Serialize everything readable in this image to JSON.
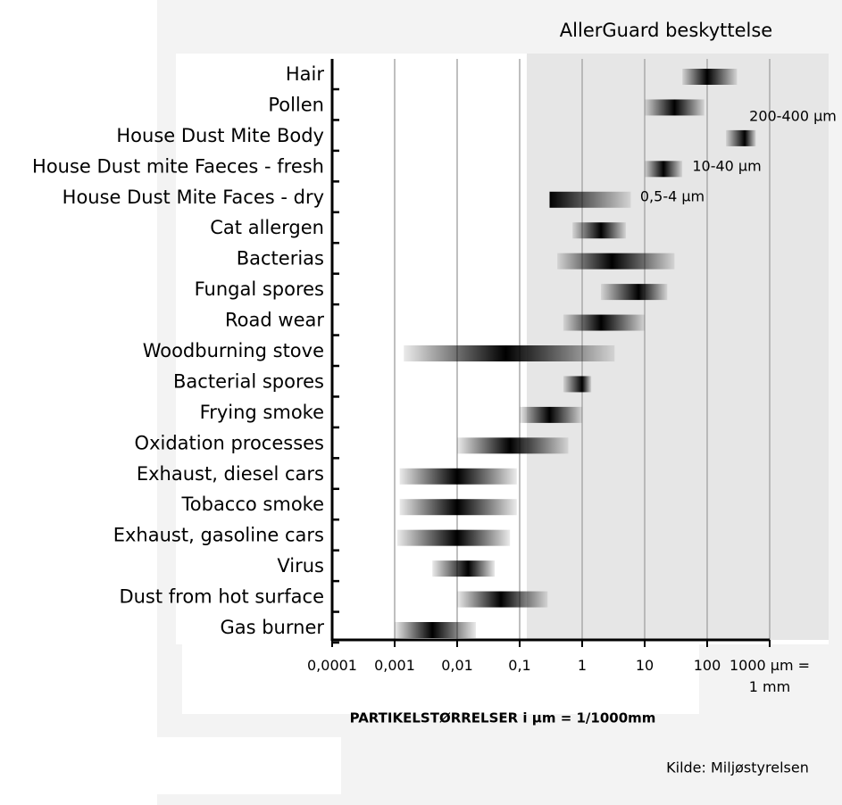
{
  "chart_data": {
    "type": "range",
    "title": "AllerGuard beskyttelse",
    "x_label": "PARTIKELSTØRRELSER i µm = 1/1000mm",
    "source": "Kilde: Miljøstyrelsen",
    "categories": [
      "Hair",
      "Pollen",
      "House Dust Mite Body",
      "House Dust mite Faeces - fresh",
      "House Dust Mite Faces - dry",
      "Cat allergen",
      "Bacterias",
      "Fungal spores",
      "Road wear",
      "Woodburning stove",
      "Bacterial spores",
      "Frying smoke",
      "Oxidation processes",
      "Exhaust, diesel cars",
      "Tobacco smoke",
      "Exhaust, gasoline cars",
      "Virus",
      "Dust from hot surface",
      "Gas burner"
    ],
    "low": [
      40,
      10,
      200,
      10,
      0.3,
      0.7,
      0.4,
      2,
      0.5,
      0.0014,
      0.5,
      0.1,
      0.01,
      0.0012,
      0.0012,
      0.0011,
      0.004,
      0.01,
      0.001
    ],
    "high": [
      300,
      90,
      600,
      40,
      6,
      5,
      30,
      23,
      10,
      3.3,
      1.4,
      1,
      0.6,
      0.09,
      0.09,
      0.07,
      0.04,
      0.28,
      0.02
    ],
    "peak": [
      100,
      30,
      400,
      20,
      0.3,
      2,
      3,
      8,
      2,
      0.06,
      1,
      0.3,
      0.07,
      0.01,
      0.01,
      0.01,
      0.015,
      0.05,
      0.004
    ],
    "annotations": [
      "200-400 µm",
      "10-40 µm",
      "0,5-4 µm"
    ],
    "xscale": "log",
    "xlim": [
      0.0001,
      1000
    ],
    "xticks": [
      {
        "value": 0.0001,
        "label": "0,0001"
      },
      {
        "value": 0.001,
        "label": "0,001"
      },
      {
        "value": 0.01,
        "label": "0,01"
      },
      {
        "value": 0.1,
        "label": "0,1"
      },
      1,
      10,
      100,
      {
        "value": 1000,
        "label": "1000 µm = 1 mm"
      }
    ],
    "grid": true,
    "highlight_from": 0.13,
    "highlight_color": "#e6e6e6",
    "color": "#000000"
  }
}
